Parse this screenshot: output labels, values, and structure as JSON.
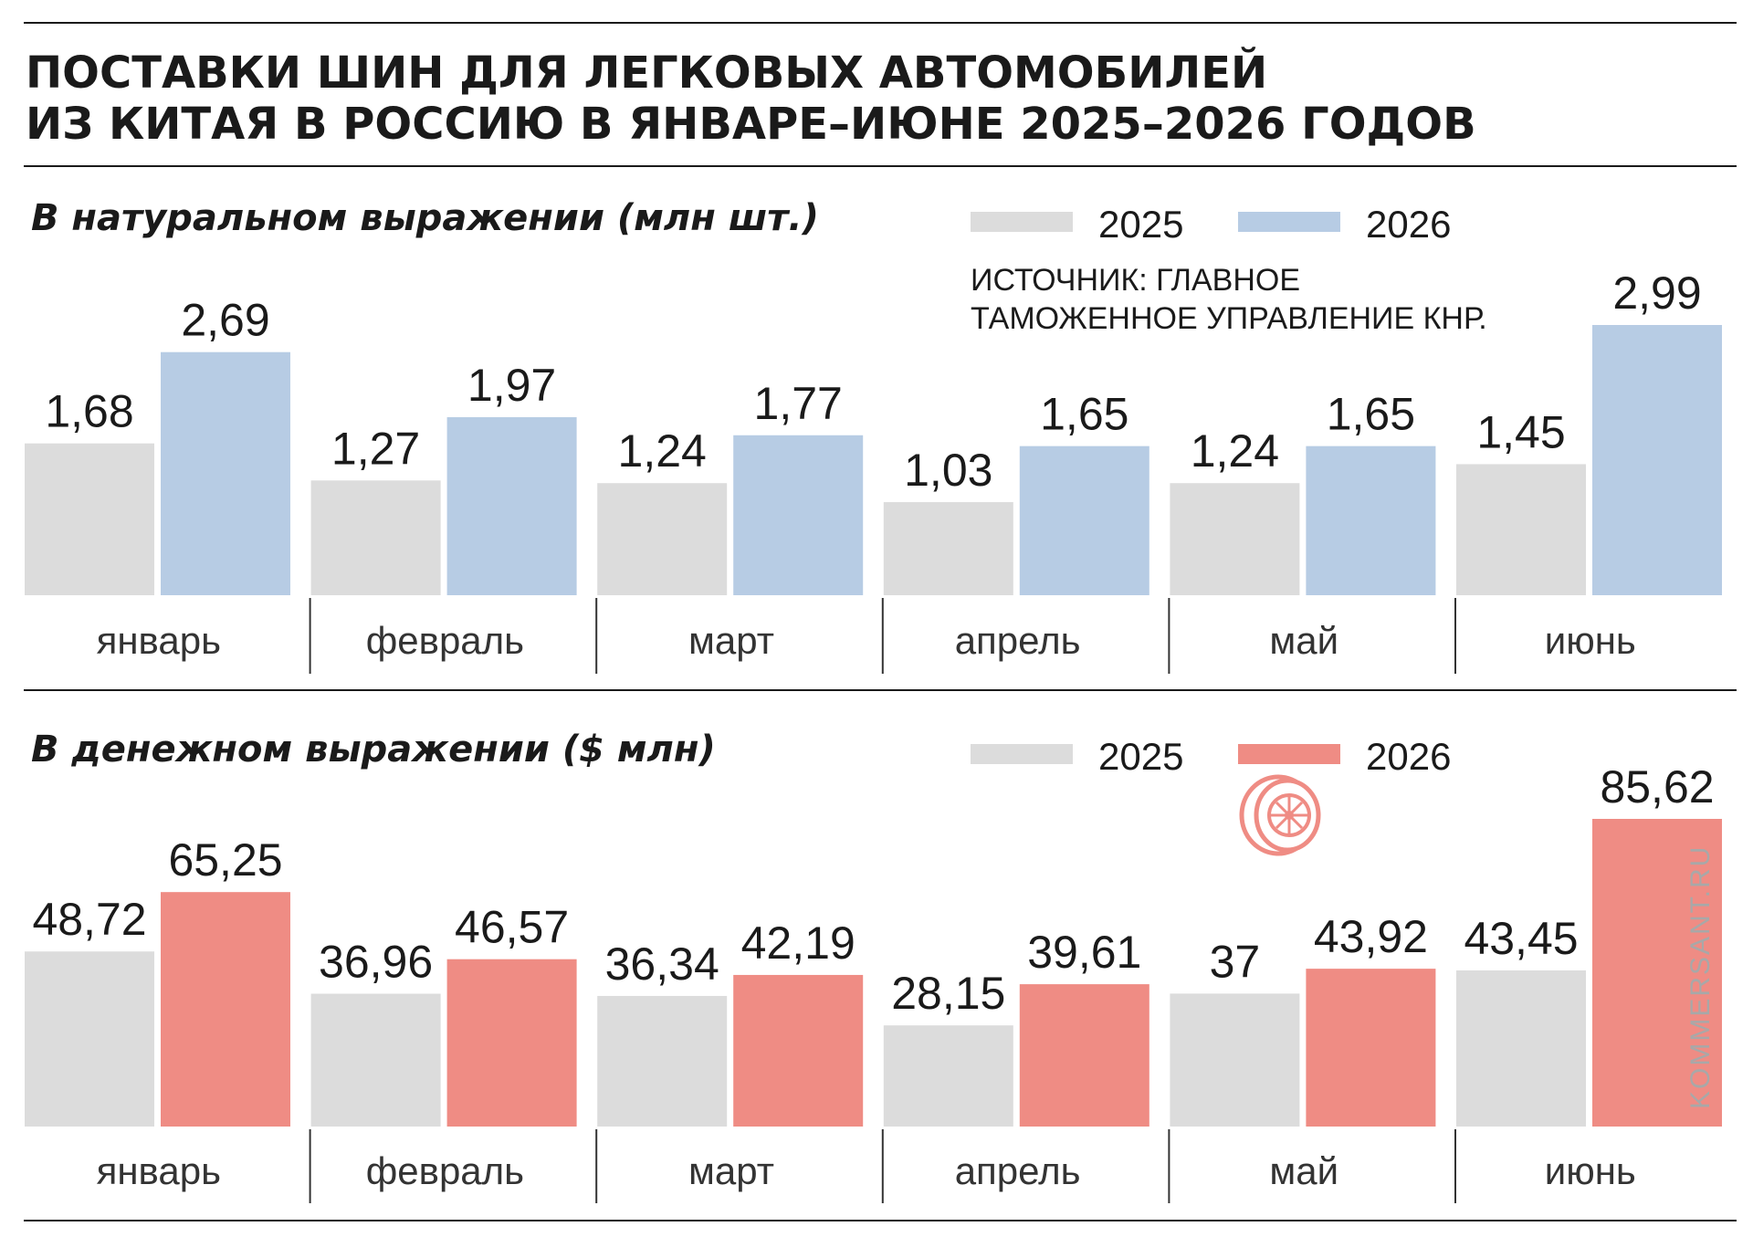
{
  "header": {
    "title_line1": "ПОСТАВКИ ШИН ДЛЯ ЛЕГКОВЫХ АВТОМОБИЛЕЙ",
    "title_line2": "ИЗ КИТАЯ В РОССИЮ В ЯНВАРЕ–ИЮНЕ 2025–2026 ГОДОВ"
  },
  "source": {
    "line1": "ИСТОЧНИК: ГЛАВНОЕ",
    "line2": "ТАМОЖЕННОЕ УПРАВЛЕНИЕ КНР."
  },
  "watermark": "KOMMERSANT.RU",
  "icons": {
    "tire": "tire-icon"
  },
  "colors": {
    "series_2025": "#dcdcdc",
    "series_2026_volume": "#b7cce4",
    "series_2026_value": "#ef8c84",
    "rule": "#1a1a1a",
    "divider": "#333333"
  },
  "chart_data": [
    {
      "type": "bar",
      "title": "В натуральном выражении (млн шт.)",
      "categories": [
        "январь",
        "февраль",
        "март",
        "апрель",
        "май",
        "июнь"
      ],
      "series": [
        {
          "name": "2025",
          "values": [
            1.68,
            1.27,
            1.24,
            1.03,
            1.24,
            1.45
          ],
          "labels": [
            "1,68",
            "1,27",
            "1,24",
            "1,03",
            "1,24",
            "1,45"
          ],
          "color": "#dcdcdc"
        },
        {
          "name": "2026",
          "values": [
            2.69,
            1.97,
            1.77,
            1.65,
            1.65,
            2.99
          ],
          "labels": [
            "2,69",
            "1,97",
            "1,77",
            "1,65",
            "1,65",
            "2,99"
          ],
          "color": "#b7cce4"
        }
      ],
      "ylim": [
        0,
        2.99
      ],
      "grid": false,
      "legend_position": "top-right"
    },
    {
      "type": "bar",
      "title": "В денежном выражении ($ млн)",
      "categories": [
        "январь",
        "февраль",
        "март",
        "апрель",
        "май",
        "июнь"
      ],
      "series": [
        {
          "name": "2025",
          "values": [
            48.72,
            36.96,
            36.34,
            28.15,
            37,
            43.45
          ],
          "labels": [
            "48,72",
            "36,96",
            "36,34",
            "28,15",
            "37",
            "43,45"
          ],
          "color": "#dcdcdc"
        },
        {
          "name": "2026",
          "values": [
            65.25,
            46.57,
            42.19,
            39.61,
            43.92,
            85.62
          ],
          "labels": [
            "65,25",
            "46,57",
            "42,19",
            "39,61",
            "43,92",
            "85,62"
          ],
          "color": "#ef8c84"
        }
      ],
      "ylim": [
        0,
        85.62
      ],
      "grid": false,
      "legend_position": "top-right"
    }
  ]
}
